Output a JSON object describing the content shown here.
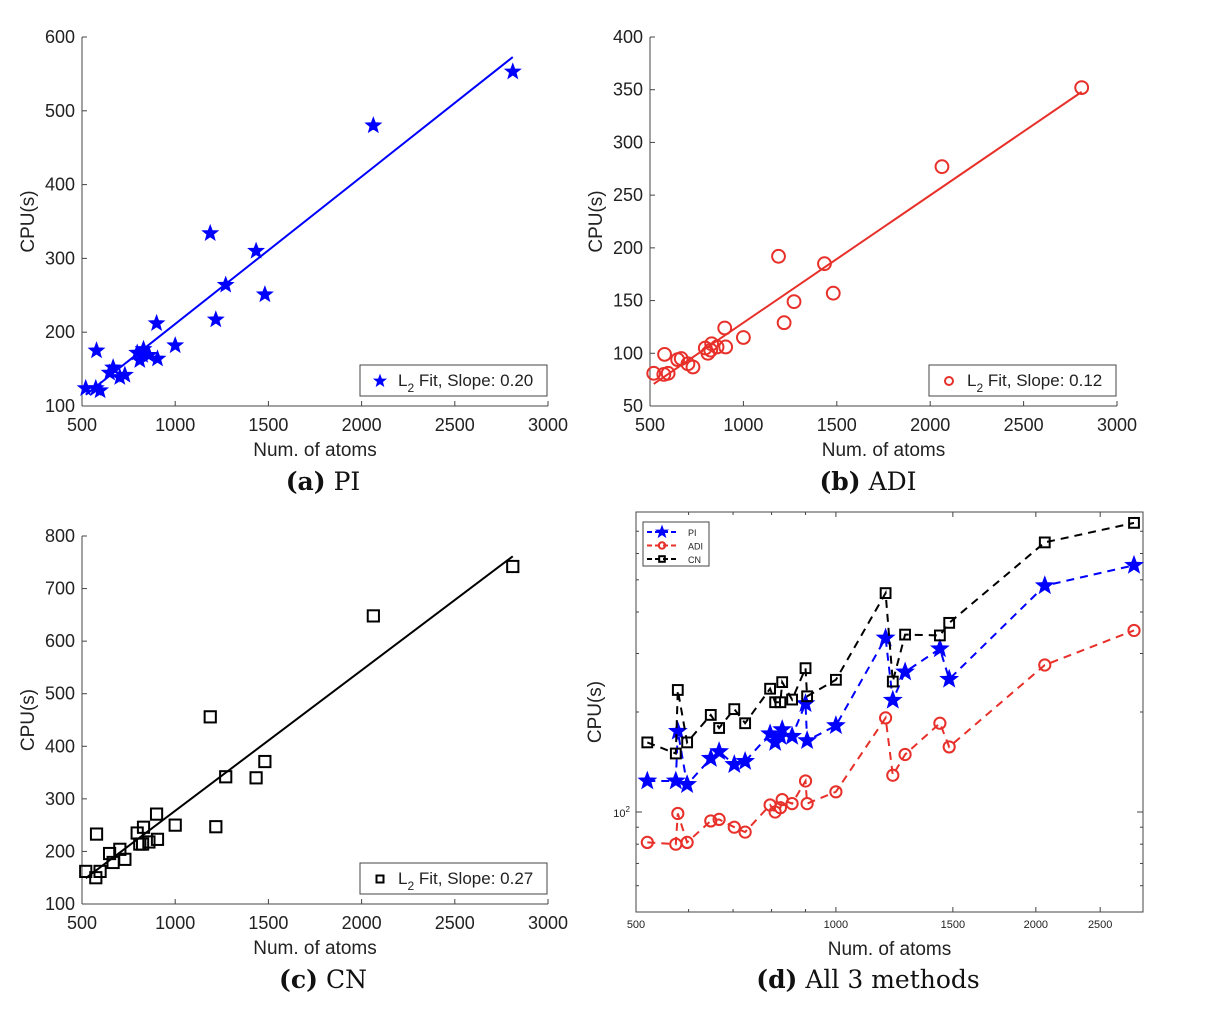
{
  "chart_data": [
    {
      "type": "scatter",
      "caption_label": "(a)",
      "caption_text": "PI",
      "xlabel": "Num. of atoms",
      "ylabel": "CPU(s)",
      "xlim": [
        500,
        3000
      ],
      "ylim": [
        100,
        600
      ],
      "xticks": [
        500,
        1000,
        1500,
        2000,
        2500,
        3000
      ],
      "yticks": [
        100,
        200,
        300,
        400,
        500,
        600
      ],
      "marker": "star",
      "color": "#0000ff",
      "legend": {
        "text": "L2 Fit, Slope: 0.20",
        "sub_label": "L",
        "sub": "2",
        "rest": " Fit, Slope: 0.20",
        "position": "bottom-right"
      },
      "fit_slope": 0.2,
      "x": [
        520,
        574,
        578,
        597,
        648,
        667,
        703,
        730,
        796,
        810,
        825,
        830,
        859,
        900,
        905,
        1000,
        1188,
        1218,
        1271,
        1434,
        1481,
        2063,
        2811
      ],
      "y": [
        124,
        124,
        175,
        121,
        145,
        152,
        139,
        142,
        172,
        162,
        169,
        177,
        169,
        212,
        164,
        182,
        334,
        217,
        264,
        310,
        251,
        480,
        553
      ]
    },
    {
      "type": "scatter",
      "caption_label": "(b)",
      "caption_text": "ADI",
      "xlabel": "Num. of atoms",
      "ylabel": "CPU(s)",
      "xlim": [
        500,
        3000
      ],
      "ylim": [
        50,
        400
      ],
      "xticks": [
        500,
        1000,
        1500,
        2000,
        2500,
        3000
      ],
      "yticks": [
        50,
        100,
        150,
        200,
        250,
        300,
        350,
        400
      ],
      "marker": "circle",
      "color": "#e8302a",
      "legend": {
        "text": "L2 Fit, Slope: 0.12",
        "sub_label": "L",
        "sub": "2",
        "rest": " Fit, Slope: 0.12",
        "position": "bottom-right"
      },
      "fit_slope": 0.12,
      "x": [
        520,
        574,
        578,
        597,
        648,
        667,
        703,
        730,
        796,
        810,
        825,
        830,
        859,
        900,
        905,
        1000,
        1188,
        1218,
        1271,
        1434,
        1481,
        2063,
        2811
      ],
      "y": [
        81,
        80,
        99,
        81,
        94,
        95,
        90,
        87,
        105,
        100,
        103,
        109,
        106,
        124,
        106,
        115,
        192,
        129,
        149,
        185,
        157,
        277,
        352
      ]
    },
    {
      "type": "scatter",
      "caption_label": "(c)",
      "caption_text": "CN",
      "xlabel": "Num. of atoms",
      "ylabel": "CPU(s)",
      "xlim": [
        500,
        3000
      ],
      "ylim": [
        100,
        800
      ],
      "xticks": [
        500,
        1000,
        1500,
        2000,
        2500,
        3000
      ],
      "yticks": [
        100,
        200,
        300,
        400,
        500,
        600,
        700,
        800
      ],
      "marker": "square",
      "color": "#000000",
      "legend": {
        "text": "L2 Fit, Slope: 0.27",
        "sub_label": "L",
        "sub": "2",
        "rest": " Fit, Slope: 0.27",
        "position": "bottom-right"
      },
      "fit_slope": 0.27,
      "x": [
        520,
        574,
        578,
        597,
        648,
        667,
        703,
        730,
        796,
        810,
        825,
        830,
        859,
        900,
        905,
        1000,
        1188,
        1218,
        1271,
        1434,
        1481,
        2063,
        2811
      ],
      "y": [
        162,
        150,
        233,
        162,
        196,
        179,
        204,
        185,
        235,
        214,
        214,
        246,
        218,
        271,
        223,
        250,
        456,
        247,
        342,
        340,
        371,
        648,
        742
      ]
    },
    {
      "type": "line",
      "caption_label": "(d)",
      "caption_text": "All 3 methods",
      "xlabel": "Num. of atoms",
      "ylabel": "CPU(s)",
      "xscale": "log",
      "yscale": "log",
      "xlim": [
        500,
        2900
      ],
      "ylim": [
        50,
        800
      ],
      "xticks": [
        500,
        1000,
        1500,
        2000,
        2500
      ],
      "ytick_label": {
        "base": "10",
        "exp": "2",
        "value": 100
      },
      "legend_position": "top-left",
      "x": [
        520,
        574,
        578,
        597,
        648,
        667,
        703,
        730,
        796,
        810,
        825,
        830,
        859,
        900,
        905,
        1000,
        1188,
        1218,
        1271,
        1434,
        1481,
        2063,
        2811
      ],
      "series": [
        {
          "name": "PI",
          "marker": "star",
          "color": "#0000ff",
          "linestyle": "dashed"
        },
        {
          "name": "ADI",
          "marker": "circle",
          "color": "#e8302a",
          "linestyle": "dashed"
        },
        {
          "name": "CN",
          "marker": "square",
          "color": "#000000",
          "linestyle": "dashed"
        }
      ]
    }
  ]
}
